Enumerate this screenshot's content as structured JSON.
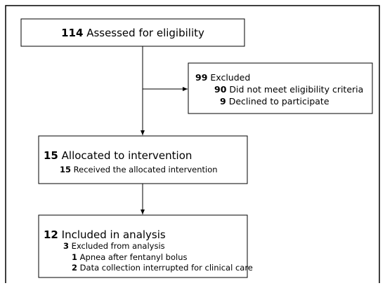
{
  "nodes": [
    {
      "lines": [
        {
          "count": 114,
          "label": "Assessed for eligibility"
        }
      ]
    },
    {
      "lines": [
        {
          "count": 99,
          "label": "Excluded"
        },
        {
          "count": 90,
          "label": "Did not meet eligibility criteria"
        },
        {
          "count": 9,
          "label": "Declined to participate"
        }
      ]
    },
    {
      "lines": [
        {
          "count": 15,
          "label": "Allocated to intervention"
        },
        {
          "count": 15,
          "label": "Received the allocated intervention"
        }
      ]
    },
    {
      "lines": [
        {
          "count": 12,
          "label": "Included in analysis"
        },
        {
          "count": 3,
          "label": "Excluded from analysis"
        },
        {
          "count": 1,
          "label": "Apnea after fentanyl bolus"
        },
        {
          "count": 2,
          "label": "Data collection interrupted for clinical care"
        }
      ]
    }
  ]
}
